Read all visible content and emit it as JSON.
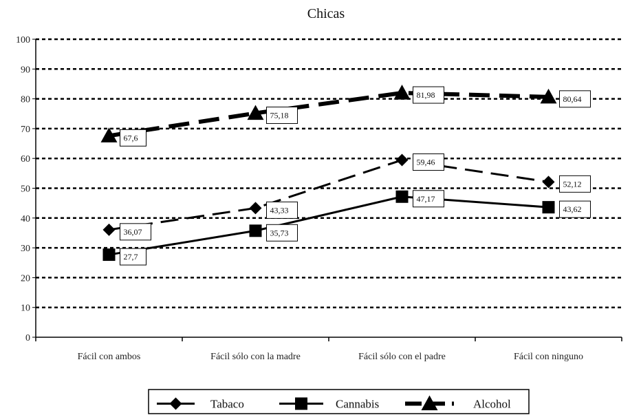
{
  "chart_data": {
    "type": "line",
    "title": "Chicas",
    "categories": [
      "Fácil con ambos",
      "Fácil sólo con la madre",
      "Fácil sólo con el padre",
      "Fácil con ninguno"
    ],
    "ylim": [
      0,
      100
    ],
    "yticks": [
      0,
      10,
      20,
      30,
      40,
      50,
      60,
      70,
      80,
      90,
      100
    ],
    "grid": true,
    "legend_position": "bottom",
    "series": [
      {
        "name": "Tabaco",
        "values": [
          36.07,
          43.33,
          59.46,
          52.12
        ],
        "labels": [
          "36,07",
          "43,33",
          "59,46",
          "52,12"
        ],
        "marker": "diamond",
        "line_style": "long-dash"
      },
      {
        "name": "Cannabis",
        "values": [
          27.7,
          35.73,
          47.17,
          43.62
        ],
        "labels": [
          "27,7",
          "35,73",
          "47,17",
          "43,62"
        ],
        "marker": "square",
        "line_style": "solid"
      },
      {
        "name": "Alcohol",
        "values": [
          67.6,
          75.18,
          81.98,
          80.64
        ],
        "labels": [
          "67,6",
          "75,18",
          "81,98",
          "80,64"
        ],
        "marker": "triangle",
        "line_style": "heavy-dash"
      }
    ],
    "colors": {
      "line": "#000000",
      "grid": "#000000",
      "background": "#ffffff"
    }
  }
}
